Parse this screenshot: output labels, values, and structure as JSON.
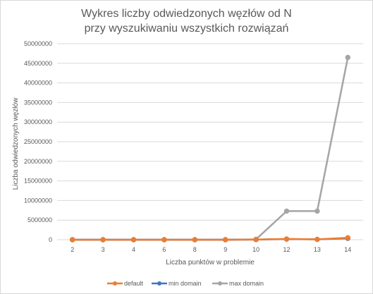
{
  "chart_data": {
    "type": "line",
    "title_line1": "Wykres liczby odwiedzonych węzłów od N",
    "title_line2": "przy wyszukiwaniu wszystkich rozwiązań",
    "xlabel": "Liczba punktów w problemie",
    "ylabel": "Liczba odwiedzonych węzłów",
    "categories": [
      "2",
      "3",
      "4",
      "6",
      "8",
      "9",
      "10",
      "12",
      "13",
      "14"
    ],
    "ylim": [
      0,
      50000000
    ],
    "yticks": [
      0,
      5000000,
      10000000,
      15000000,
      20000000,
      25000000,
      30000000,
      35000000,
      40000000,
      45000000,
      50000000
    ],
    "ytick_labels": [
      "0",
      "5000000",
      "10000000",
      "15000000",
      "20000000",
      "25000000",
      "30000000",
      "35000000",
      "40000000",
      "45000000",
      "50000000"
    ],
    "grid": true,
    "legend_position": "bottom",
    "series": [
      {
        "name": "default",
        "color": "#ed7d31",
        "values": [
          0,
          0,
          0,
          0,
          0,
          0,
          50000,
          200000,
          100000,
          500000
        ]
      },
      {
        "name": "min domain",
        "color": "#4472c4",
        "values": [
          0,
          0,
          0,
          0,
          0,
          0,
          30000,
          150000,
          80000,
          350000
        ]
      },
      {
        "name": "max domain",
        "color": "#a5a5a5",
        "values": [
          0,
          0,
          0,
          0,
          0,
          0,
          100000,
          7300000,
          7300000,
          46500000
        ]
      }
    ]
  }
}
